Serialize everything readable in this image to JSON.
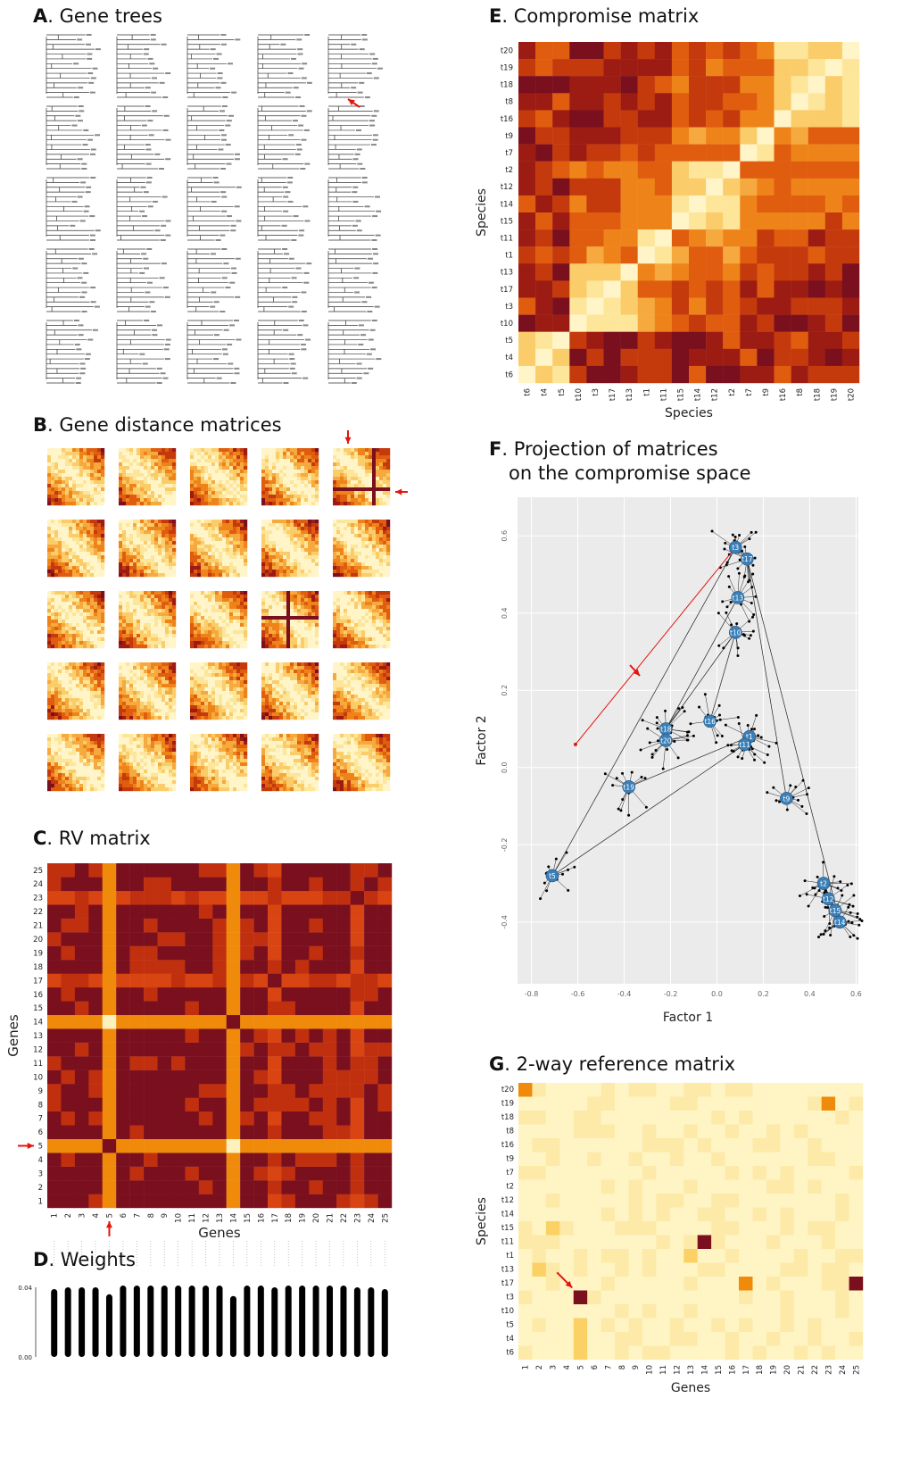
{
  "panels": {
    "A": {
      "letter": "A",
      "title": ". Gene trees"
    },
    "B": {
      "letter": "B",
      "title": ". Gene distance matrices"
    },
    "C": {
      "letter": "C",
      "title": ". RV matrix",
      "xlabel": "Genes",
      "ylabel": "Genes"
    },
    "D": {
      "letter": "D",
      "title": ". Weights",
      "ymin_label": "0.00",
      "ymax_label": "0.04"
    },
    "E": {
      "letter": "E",
      "title": ". Compromise matrix",
      "xlabel": "Species",
      "ylabel": "Species"
    },
    "F": {
      "letter": "F",
      "title": ". Projection of matrices",
      "title2": "on the compromise space",
      "xlabel": "Factor 1",
      "ylabel": "Factor 2"
    },
    "G": {
      "letter": "G",
      "title": ". 2-way reference matrix",
      "xlabel": "Genes",
      "ylabel": "Species"
    }
  },
  "colors": {
    "dark": "#7a0f1e",
    "red": "#c1300e",
    "orange": "#f08a0a",
    "yellow": "#fbd165",
    "pale": "#fff1bd",
    "arrow": "#e3150e",
    "node": "#3b7fb8",
    "plotbg": "#ebebeb"
  },
  "chart_data": [
    {
      "type": "heatmap",
      "panel": "C",
      "title": "RV matrix",
      "xlabel": "Genes",
      "ylabel": "Genes",
      "x_categories": [
        "1",
        "2",
        "3",
        "4",
        "5",
        "6",
        "7",
        "8",
        "9",
        "10",
        "11",
        "12",
        "13",
        "14",
        "15",
        "16",
        "17",
        "18",
        "19",
        "20",
        "21",
        "22",
        "23",
        "24",
        "25"
      ],
      "y_categories": [
        "1",
        "2",
        "3",
        "4",
        "5",
        "6",
        "7",
        "8",
        "9",
        "10",
        "11",
        "12",
        "13",
        "14",
        "15",
        "16",
        "17",
        "18",
        "19",
        "20",
        "21",
        "22",
        "23",
        "24",
        "25"
      ],
      "outlier_genes": [
        5,
        14
      ],
      "highlight_row": "5",
      "highlight_col": "5"
    },
    {
      "type": "bar",
      "panel": "D",
      "title": "Weights",
      "categories": [
        "1",
        "2",
        "3",
        "4",
        "5",
        "6",
        "7",
        "8",
        "9",
        "10",
        "11",
        "12",
        "13",
        "14",
        "15",
        "16",
        "17",
        "18",
        "19",
        "20",
        "21",
        "22",
        "23",
        "24",
        "25"
      ],
      "values": [
        0.039,
        0.04,
        0.04,
        0.04,
        0.036,
        0.041,
        0.041,
        0.041,
        0.041,
        0.041,
        0.041,
        0.041,
        0.041,
        0.035,
        0.041,
        0.041,
        0.04,
        0.041,
        0.041,
        0.041,
        0.041,
        0.041,
        0.04,
        0.04,
        0.039
      ],
      "ylim": [
        0,
        0.04
      ],
      "yticks": [
        0,
        0.04
      ]
    },
    {
      "type": "heatmap",
      "panel": "E",
      "title": "Compromise matrix",
      "xlabel": "Species",
      "ylabel": "Species",
      "x_categories": [
        "t6",
        "t4",
        "t5",
        "t10",
        "t3",
        "t17",
        "t13",
        "t1",
        "t11",
        "t15",
        "t14",
        "t12",
        "t2",
        "t7",
        "t9",
        "t16",
        "t8",
        "t18",
        "t19",
        "t20"
      ],
      "y_categories": [
        "t20",
        "t19",
        "t18",
        "t8",
        "t16",
        "t9",
        "t7",
        "t2",
        "t12",
        "t14",
        "t15",
        "t11",
        "t1",
        "t13",
        "t17",
        "t3",
        "t10",
        "t5",
        "t4",
        "t6"
      ]
    },
    {
      "type": "scatter",
      "panel": "F",
      "title": "Projection of matrices on the compromise space",
      "xlabel": "Factor 1",
      "ylabel": "Factor 2",
      "xlim": [
        -0.86,
        0.61
      ],
      "ylim": [
        -0.56,
        0.7
      ],
      "xticks": [
        "-0.8",
        "-0.6",
        "-0.4",
        "-0.2",
        "0.0",
        "0.2",
        "0.4",
        "0.6"
      ],
      "yticks": [
        "-0.4",
        "-0.2",
        "0.0",
        "0.2",
        "0.4",
        "0.6"
      ],
      "species": [
        {
          "name": "t3",
          "x": 0.08,
          "y": 0.57
        },
        {
          "name": "t17",
          "x": 0.13,
          "y": 0.54
        },
        {
          "name": "t13",
          "x": 0.09,
          "y": 0.44
        },
        {
          "name": "t10",
          "x": 0.08,
          "y": 0.35
        },
        {
          "name": "t18",
          "x": -0.22,
          "y": 0.1
        },
        {
          "name": "t20",
          "x": -0.22,
          "y": 0.07
        },
        {
          "name": "t16",
          "x": -0.03,
          "y": 0.12
        },
        {
          "name": "t1",
          "x": 0.14,
          "y": 0.08
        },
        {
          "name": "t11",
          "x": 0.12,
          "y": 0.06
        },
        {
          "name": "t19",
          "x": -0.38,
          "y": -0.05
        },
        {
          "name": "t9",
          "x": 0.3,
          "y": -0.08
        },
        {
          "name": "t5",
          "x": -0.71,
          "y": -0.28
        },
        {
          "name": "t2",
          "x": 0.46,
          "y": -0.3
        },
        {
          "name": "t12",
          "x": 0.48,
          "y": -0.34
        },
        {
          "name": "t15",
          "x": 0.51,
          "y": -0.37
        },
        {
          "name": "t14",
          "x": 0.53,
          "y": -0.4
        }
      ],
      "outlier_point": {
        "x": -0.61,
        "y": 0.06
      }
    },
    {
      "type": "heatmap",
      "panel": "G",
      "title": "2-way reference matrix",
      "xlabel": "Genes",
      "ylabel": "Species",
      "x_categories": [
        "1",
        "2",
        "3",
        "4",
        "5",
        "6",
        "7",
        "8",
        "9",
        "10",
        "11",
        "12",
        "13",
        "14",
        "15",
        "16",
        "17",
        "18",
        "19",
        "20",
        "21",
        "22",
        "23",
        "24",
        "25"
      ],
      "y_categories": [
        "t20",
        "t19",
        "t18",
        "t8",
        "t16",
        "t9",
        "t7",
        "t2",
        "t12",
        "t14",
        "t15",
        "t11",
        "t1",
        "t13",
        "t17",
        "t3",
        "t10",
        "t5",
        "t4",
        "t6"
      ],
      "hot_cells": [
        {
          "species": "t20",
          "gene": "1",
          "level": "orange"
        },
        {
          "species": "t19",
          "gene": "23",
          "level": "orange"
        },
        {
          "species": "t15",
          "gene": "3",
          "level": "yellow"
        },
        {
          "species": "t11",
          "gene": "14",
          "level": "dark"
        },
        {
          "species": "t1",
          "gene": "13",
          "level": "yellow"
        },
        {
          "species": "t13",
          "gene": "2",
          "level": "yellow"
        },
        {
          "species": "t17",
          "gene": "17",
          "level": "orange"
        },
        {
          "species": "t17",
          "gene": "25",
          "level": "dark"
        },
        {
          "species": "t3",
          "gene": "5",
          "level": "dark"
        },
        {
          "species": "t5",
          "gene": "5",
          "level": "yellow"
        },
        {
          "species": "t4",
          "gene": "5",
          "level": "yellow"
        },
        {
          "species": "t6",
          "gene": "5",
          "level": "yellow"
        }
      ]
    }
  ]
}
